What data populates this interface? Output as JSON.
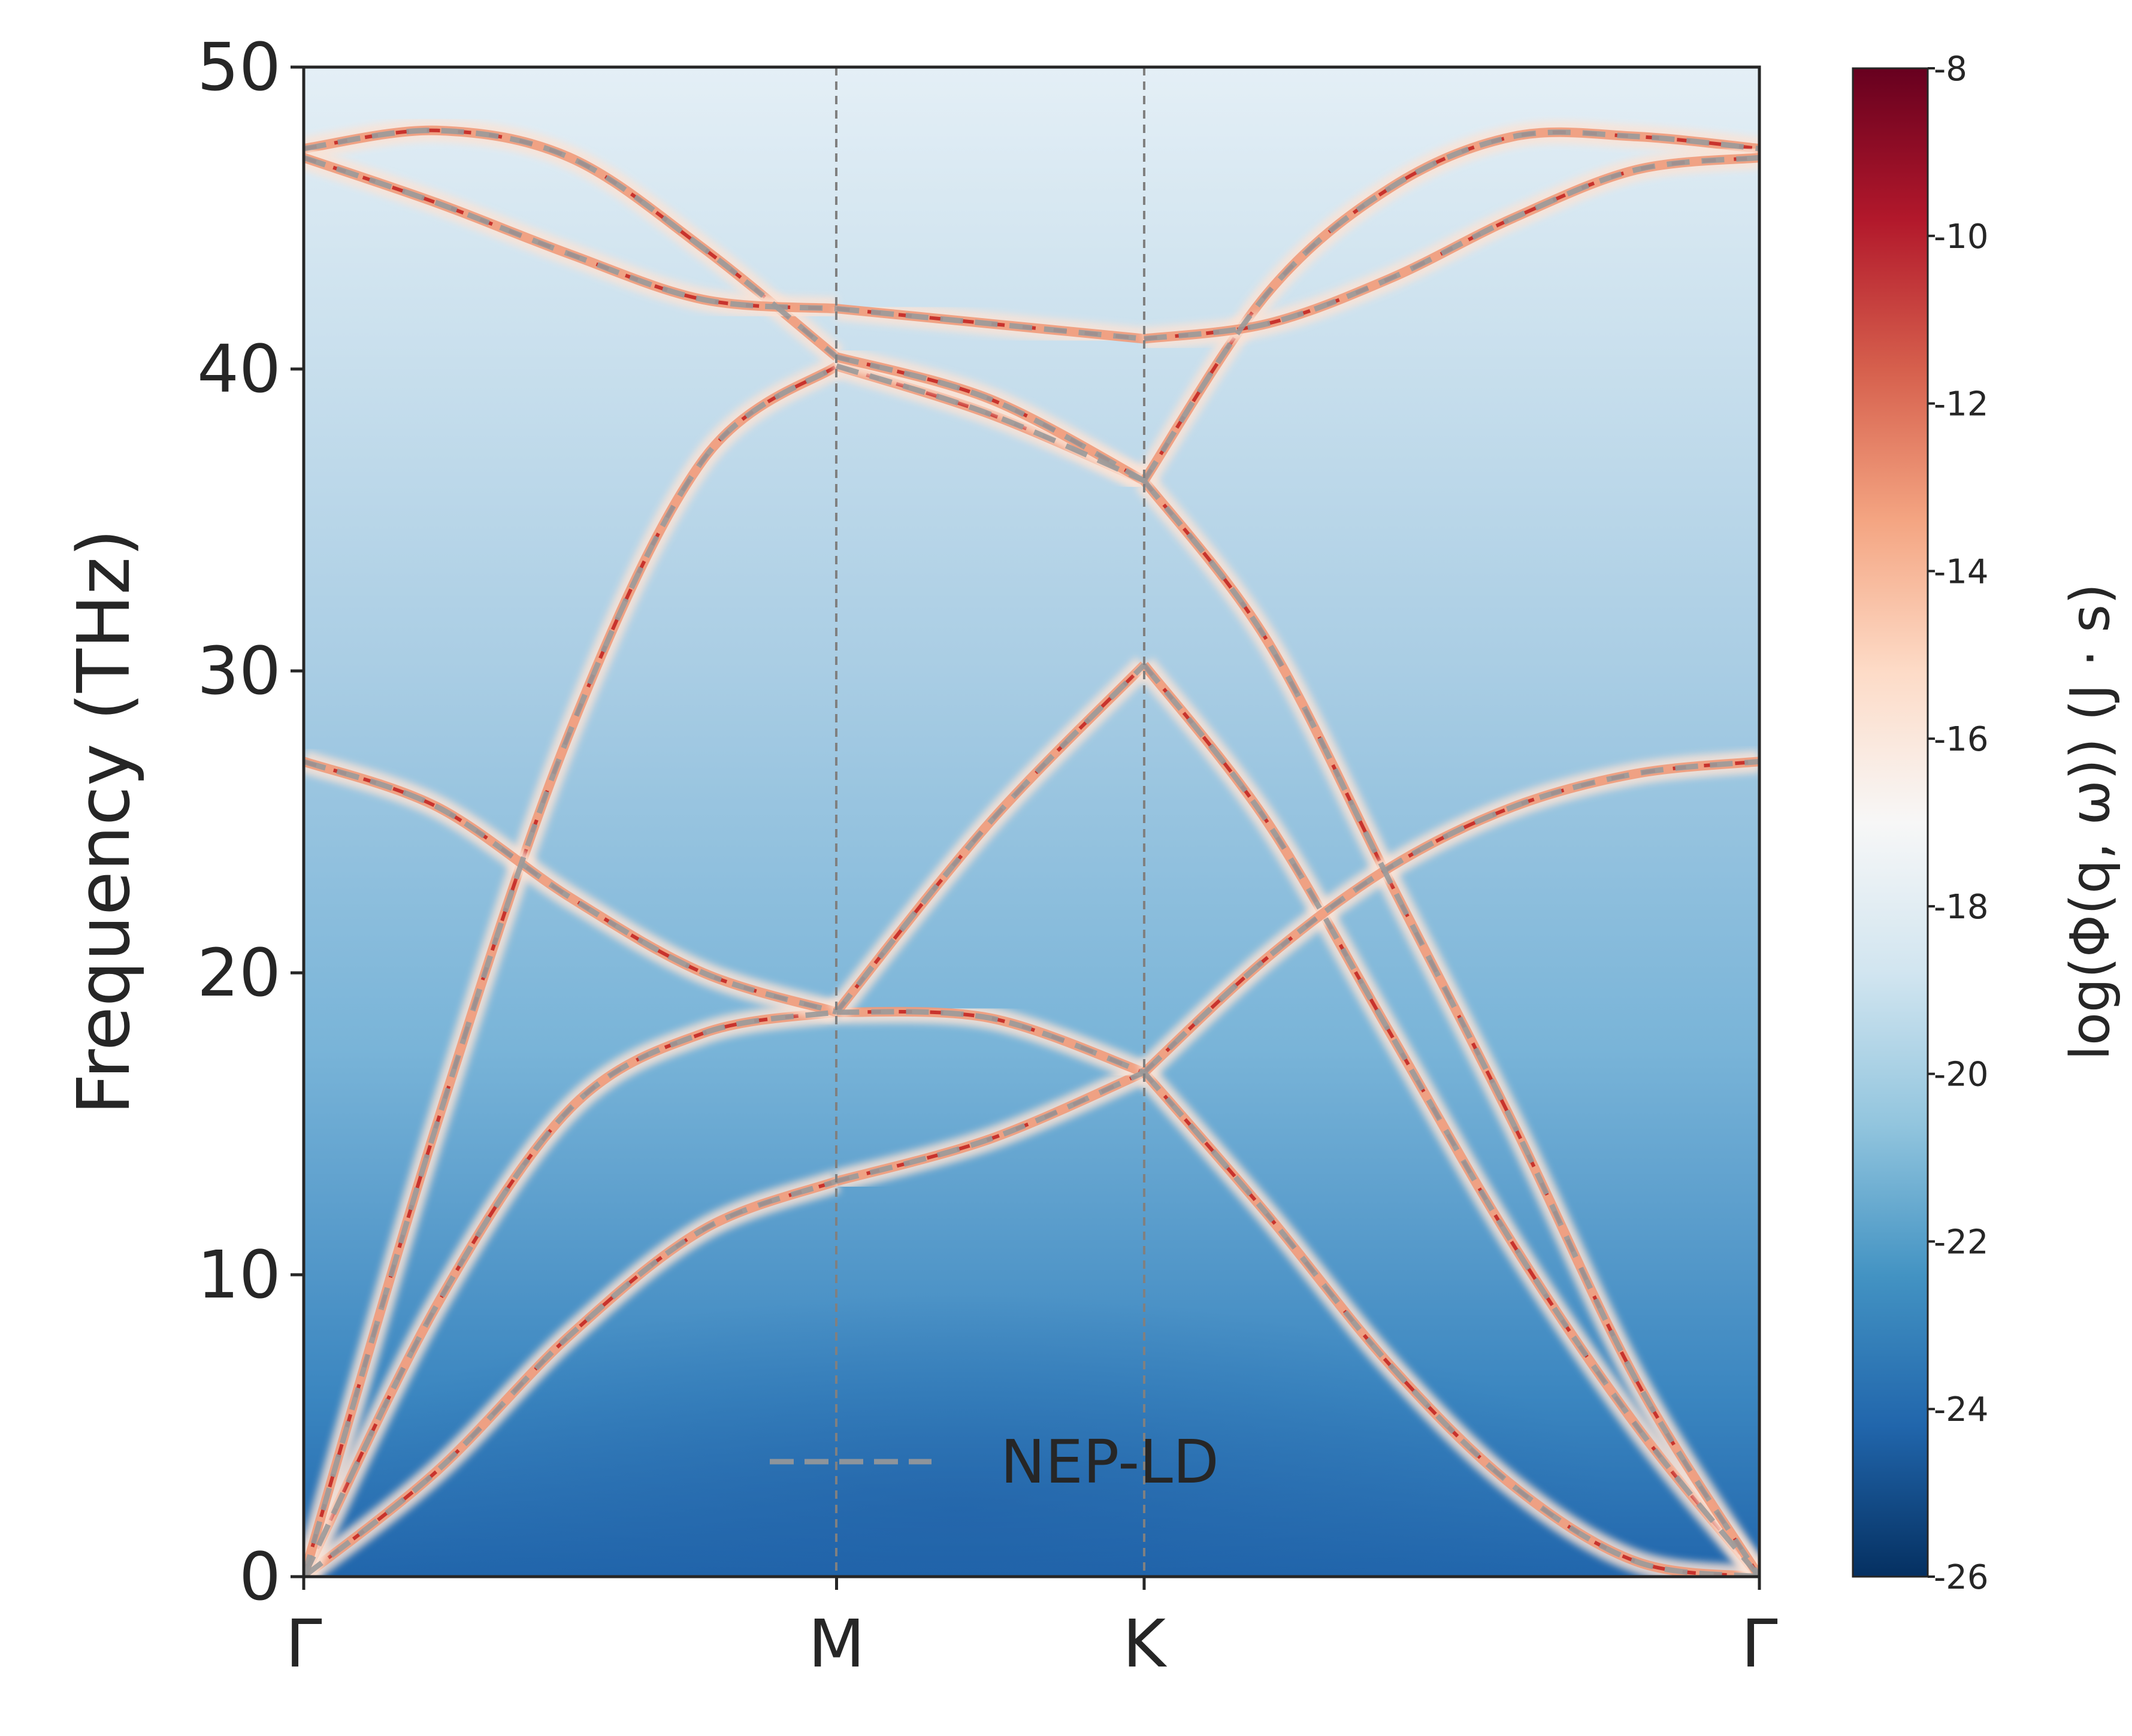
{
  "chart_data": {
    "type": "heatmap",
    "title": "",
    "xlabel": "",
    "ylabel": "Frequency (THz)",
    "ylim": [
      0,
      50
    ],
    "yticks": [
      0,
      10,
      20,
      30,
      40,
      50
    ],
    "xticks": [
      {
        "label": "Γ",
        "pos": 0.0
      },
      {
        "label": "M",
        "pos": 0.5774
      },
      {
        "label": "K",
        "pos": 0.9107
      },
      {
        "label": "Γ",
        "pos": 1.5774
      }
    ],
    "xlim": [
      0,
      1.5774
    ],
    "grid": false,
    "colorbar": {
      "label": "log(Φ(q, ω)) (J · s)",
      "colormap": "RdBu_r",
      "range": [
        -26,
        -8
      ],
      "ticks": [
        "-8",
        "-10",
        "-12",
        "-14",
        "-16",
        "-18",
        "-20",
        "-22",
        "-24",
        "-26"
      ]
    },
    "legend": {
      "location": "lower center",
      "entries": [
        {
          "label": "NEP-LD",
          "style": "dashed",
          "color": "#999999"
        }
      ]
    },
    "series": [
      {
        "segment": "Γ-M",
        "x": [
          0.0,
          0.5774
        ],
        "branches": [
          {
            "values": [
              0.0,
              3.5,
              8.0,
              11.5,
              13.1
            ]
          },
          {
            "values": [
              0.0,
              9.0,
              15.5,
              18.0,
              18.7
            ]
          },
          {
            "values": [
              0.0,
              15.0,
              28.0,
              37.0,
              40.1
            ]
          },
          {
            "values": [
              27.0,
              25.5,
              22.5,
              20.0,
              18.7
            ]
          },
          {
            "values": [
              47.3,
              47.9,
              47.0,
              44.0,
              40.4
            ]
          },
          {
            "values": [
              47.0,
              45.5,
              43.8,
              42.3,
              42.0
            ]
          }
        ]
      },
      {
        "segment": "M-K",
        "x": [
          0.5774,
          0.9107
        ],
        "branches": [
          {
            "values": [
              13.1,
              14.5,
              16.7
            ]
          },
          {
            "values": [
              18.7,
              18.5,
              16.7
            ]
          },
          {
            "values": [
              18.7,
              25.0,
              30.2
            ]
          },
          {
            "values": [
              40.1,
              38.5,
              36.3
            ]
          },
          {
            "values": [
              40.4,
              39.0,
              36.3
            ]
          },
          {
            "values": [
              42.0,
              41.5,
              41.0
            ]
          }
        ]
      },
      {
        "segment": "K-Γ",
        "x": [
          0.9107,
          1.5774
        ],
        "branches": [
          {
            "values": [
              16.7,
              12.0,
              7.0,
              3.0,
              0.5,
              0.0
            ]
          },
          {
            "values": [
              30.2,
              25.0,
              18.0,
              11.0,
              5.0,
              0.0
            ]
          },
          {
            "values": [
              36.3,
              31.0,
              23.0,
              15.0,
              6.5,
              0.0
            ]
          },
          {
            "values": [
              16.7,
              20.5,
              23.5,
              25.5,
              26.6,
              27.0
            ]
          },
          {
            "values": [
              36.3,
              42.5,
              46.0,
              47.7,
              47.7,
              47.3
            ]
          },
          {
            "values": [
              41.0,
              41.5,
              43.0,
              45.0,
              46.6,
              47.0
            ]
          }
        ]
      }
    ]
  }
}
